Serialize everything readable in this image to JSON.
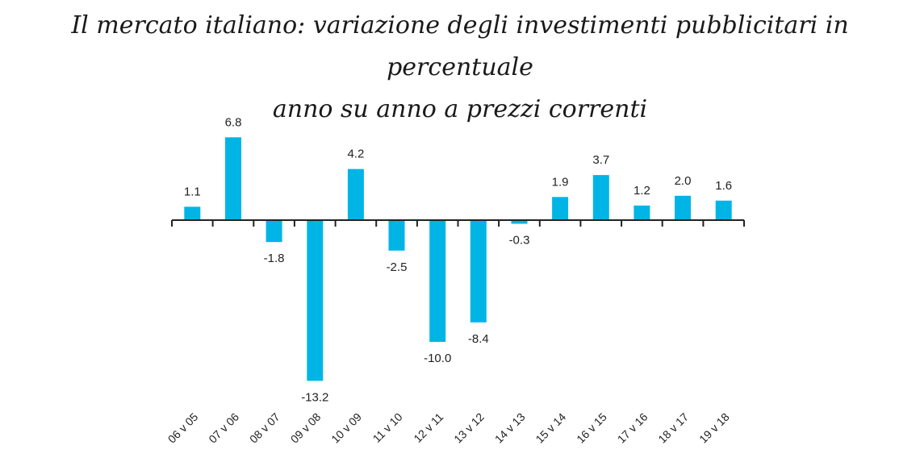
{
  "title_lines": [
    "Il mercato italiano: variazione degli investimenti pubblicitari in percentuale",
    "anno su anno a prezzi correnti"
  ],
  "chart_data": {
    "type": "bar",
    "title": "Il mercato italiano: variazione degli investimenti pubblicitari in percentuale anno su anno a prezzi correnti",
    "categories": [
      "06 v 05",
      "07 v 06",
      "08 v 07",
      "09 v 08",
      "10 v 09",
      "11 v 10",
      "12 v 11",
      "13 v 12",
      "14 v 13",
      "15 v 14",
      "16 v 15",
      "17 v 16",
      "18 v 17",
      "19 v 18"
    ],
    "values": [
      1.1,
      6.8,
      -1.8,
      -13.2,
      4.2,
      -2.5,
      -10.0,
      -8.4,
      -0.3,
      1.9,
      3.7,
      1.2,
      2.0,
      1.6
    ],
    "value_labels": [
      "1.1",
      "6.8",
      "-1.8",
      "-13.2",
      "4.2",
      "-2.5",
      "-10.0",
      "-8.4",
      "-0.3",
      "1.9",
      "3.7",
      "1.2",
      "2.0",
      "1.6"
    ],
    "xlabel": "",
    "ylabel": "",
    "ylim": [
      -13.2,
      6.8
    ],
    "grid": false,
    "bar_color": "#00b5e6",
    "axis_color": "#222222"
  }
}
